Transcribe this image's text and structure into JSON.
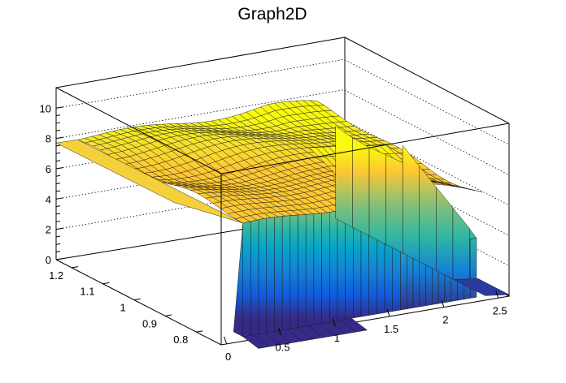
{
  "chart_data": {
    "type": "surface3d",
    "title": "Graph2D",
    "x_ticks": [
      "0",
      "0.5",
      "1",
      "1.5",
      "2",
      "2.5"
    ],
    "y_ticks": [
      "0.8",
      "0.9",
      "1",
      "1.1",
      "1.2"
    ],
    "z_ticks": [
      "0",
      "2",
      "4",
      "6",
      "8",
      "10"
    ],
    "xlim": [
      -0.05,
      2.6
    ],
    "ylim": [
      0.72,
      1.25
    ],
    "zlim": [
      0,
      11.3
    ],
    "grid": true,
    "palette": "kBird",
    "colors": {
      "low": "#352a87",
      "mid": "#2ab6a0",
      "high": "#f9fb0e"
    },
    "surface": {
      "plateau_z": 7.8,
      "plateau_x_range": [
        0.15,
        2.35
      ],
      "plateau_y_range": [
        0.72,
        1.25
      ],
      "wall_top_z": 7.6,
      "wall_x_range": [
        0.15,
        1.6
      ],
      "shoulder_z": 4.2,
      "shoulder_x_range": [
        1.6,
        2.3
      ],
      "drop_edge_x": 2.38,
      "base_z": 0.3
    }
  }
}
